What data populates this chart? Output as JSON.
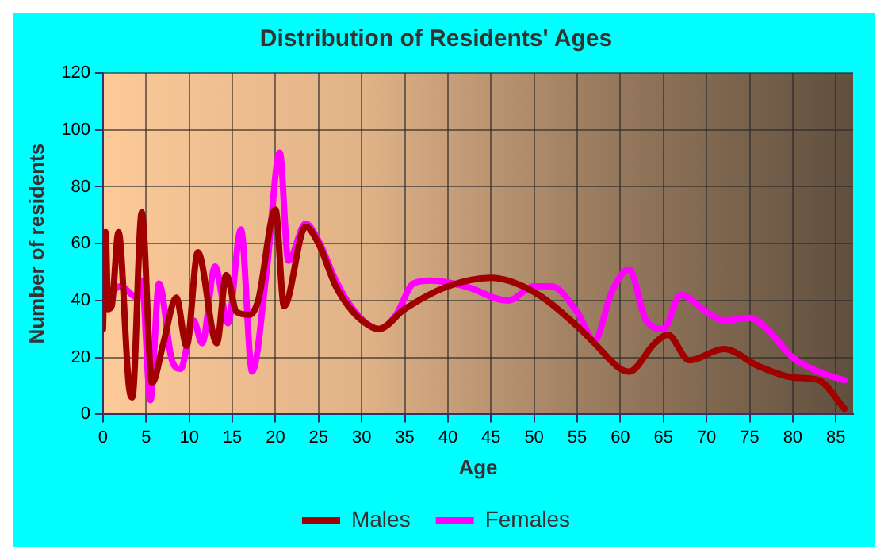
{
  "chart_data": {
    "type": "line",
    "title": "Distribution of Residents' Ages",
    "xlabel": "Age",
    "ylabel": "Number of residents",
    "xlim": [
      0,
      87
    ],
    "xticks": [
      0,
      5,
      10,
      15,
      20,
      25,
      30,
      35,
      40,
      45,
      50,
      55,
      60,
      65,
      70,
      75,
      80,
      85
    ],
    "ylim": [
      0,
      120
    ],
    "yticks": [
      0,
      20,
      40,
      60,
      80,
      100,
      120
    ],
    "grid": true,
    "legend": "bottom",
    "marker": "none",
    "line_style": "solid",
    "series": [
      {
        "name": "Males",
        "color": "#a00000",
        "x": [
          0,
          0.3,
          0.6,
          1,
          1.8,
          3,
          3.4,
          4.5,
          5.7,
          7,
          8.5,
          9.7,
          11,
          13.2,
          14.3,
          15.5,
          17,
          18,
          20,
          21,
          23.5,
          25,
          27,
          29,
          31,
          32,
          35,
          40,
          45,
          50,
          55,
          57,
          60,
          61,
          64,
          65.5,
          68,
          72,
          76,
          80,
          83,
          86
        ],
        "values": [
          30,
          64,
          37,
          38,
          64,
          10,
          6,
          71,
          11,
          25,
          41,
          24,
          57,
          25,
          49,
          36,
          35,
          40,
          72,
          38,
          66,
          60,
          45,
          36,
          31,
          30,
          37,
          45,
          48,
          43,
          31,
          25,
          16,
          15,
          25,
          28,
          19,
          23,
          17,
          13,
          12,
          2
        ]
      },
      {
        "name": "Females",
        "color": "#ff00ff",
        "x": [
          1,
          2,
          4,
          4.5,
          5.5,
          6.5,
          8,
          9,
          10.5,
          11.5,
          13,
          14.5,
          16,
          17.3,
          19,
          20.5,
          21.5,
          23.5,
          25,
          27,
          29,
          32,
          34,
          36,
          38,
          42,
          47,
          50,
          52,
          55,
          57,
          59,
          61,
          63,
          65,
          67,
          70,
          72,
          75,
          77,
          80,
          83,
          86
        ],
        "values": [
          43,
          45,
          41,
          47,
          5,
          46,
          19,
          16,
          33,
          25,
          52,
          32,
          65,
          15,
          51,
          92,
          54,
          67,
          61,
          47,
          37,
          30,
          35,
          46,
          47,
          45,
          40,
          45,
          45,
          36,
          26,
          43,
          51,
          33,
          30,
          42,
          36,
          33,
          34,
          30,
          20,
          15,
          12
        ]
      }
    ]
  }
}
